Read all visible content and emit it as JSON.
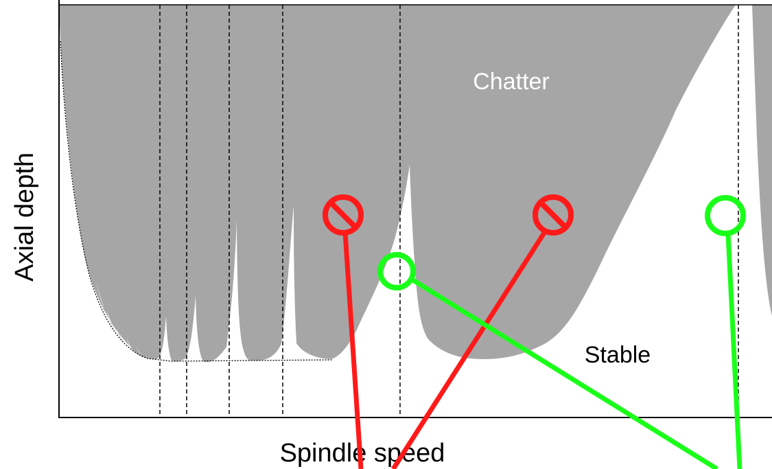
{
  "diagram": {
    "title": "",
    "axis_labels": {
      "x": "Spindle speed",
      "y": "Axial depth"
    },
    "region_labels": {
      "chatter": "Chatter",
      "stable": "Stable"
    },
    "colors": {
      "chatter_fill": "#a6a6a6",
      "stable_fill": "#ffffff",
      "not_allowed_marker": "#ff1a1a",
      "allowed_marker": "#1aff1a",
      "axes": "#000000"
    },
    "markers": [
      {
        "name": "not-allowed-point-1",
        "status": "not-allowed",
        "icon": "prohibited-circle-icon"
      },
      {
        "name": "not-allowed-point-2",
        "status": "not-allowed",
        "icon": "prohibited-circle-icon"
      },
      {
        "name": "allowed-point-1",
        "status": "allowed",
        "icon": "ring-icon"
      },
      {
        "name": "allowed-point-2",
        "status": "allowed",
        "icon": "ring-icon"
      }
    ]
  }
}
